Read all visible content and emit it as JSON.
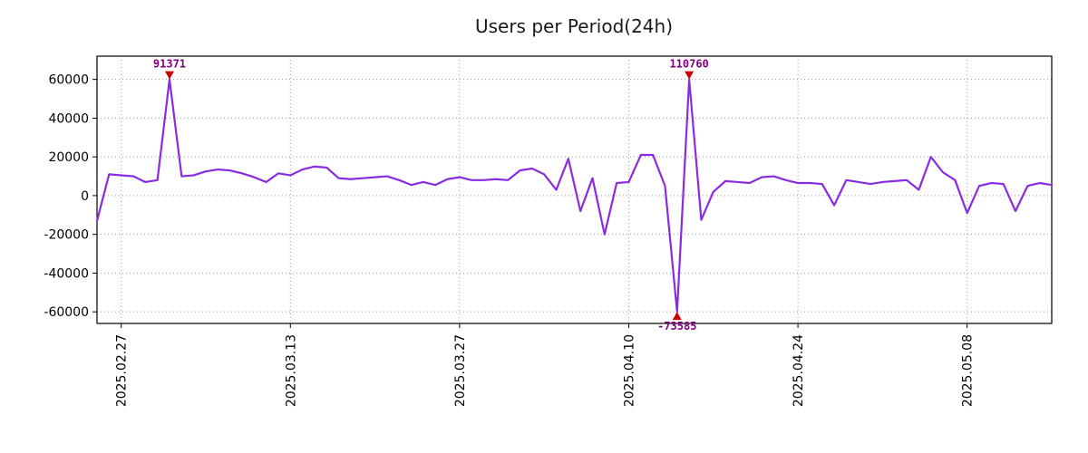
{
  "chart_data": {
    "type": "line",
    "title": "Users per Period(24h)",
    "grid": true,
    "legend": null,
    "ylim": [
      -66000,
      72000
    ],
    "clip": [
      -60000,
      60000
    ],
    "yticks": [
      60000,
      40000,
      20000,
      0,
      -20000,
      -40000,
      -60000
    ],
    "xtick_labels": [
      "2025.02.27",
      "2025.03.13",
      "2025.03.27",
      "2025.04.10",
      "2025.04.24",
      "2025.05.08"
    ],
    "x": [
      "2025-02-25",
      "2025-02-26",
      "2025-02-27",
      "2025-02-28",
      "2025-03-01",
      "2025-03-02",
      "2025-03-03",
      "2025-03-04",
      "2025-03-05",
      "2025-03-06",
      "2025-03-07",
      "2025-03-08",
      "2025-03-09",
      "2025-03-10",
      "2025-03-11",
      "2025-03-12",
      "2025-03-13",
      "2025-03-14",
      "2025-03-15",
      "2025-03-16",
      "2025-03-17",
      "2025-03-18",
      "2025-03-19",
      "2025-03-20",
      "2025-03-21",
      "2025-03-22",
      "2025-03-23",
      "2025-03-24",
      "2025-03-25",
      "2025-03-26",
      "2025-03-27",
      "2025-03-28",
      "2025-03-29",
      "2025-03-30",
      "2025-03-31",
      "2025-04-01",
      "2025-04-02",
      "2025-04-03",
      "2025-04-04",
      "2025-04-05",
      "2025-04-06",
      "2025-04-07",
      "2025-04-08",
      "2025-04-09",
      "2025-04-10",
      "2025-04-11",
      "2025-04-12",
      "2025-04-13",
      "2025-04-14",
      "2025-04-15",
      "2025-04-16",
      "2025-04-17",
      "2025-04-18",
      "2025-04-19",
      "2025-04-20",
      "2025-04-21",
      "2025-04-22",
      "2025-04-23",
      "2025-04-24",
      "2025-04-25",
      "2025-04-26",
      "2025-04-27",
      "2025-04-28",
      "2025-04-29",
      "2025-04-30",
      "2025-05-01",
      "2025-05-02",
      "2025-05-03",
      "2025-05-04",
      "2025-05-05",
      "2025-05-06",
      "2025-05-07",
      "2025-05-08",
      "2025-05-09",
      "2025-05-10",
      "2025-05-11",
      "2025-05-12",
      "2025-05-13",
      "2025-05-14",
      "2025-05-15"
    ],
    "values": [
      -13000,
      11000,
      10500,
      10000,
      7000,
      8000,
      91371,
      10000,
      10500,
      12500,
      13500,
      13000,
      11500,
      9500,
      7000,
      11500,
      10500,
      13500,
      15000,
      14500,
      9000,
      8500,
      9000,
      9500,
      10000,
      8000,
      5500,
      7000,
      5500,
      8500,
      9500,
      8000,
      8000,
      8500,
      8000,
      13000,
      14000,
      11000,
      3000,
      19000,
      -8000,
      9000,
      -20000,
      6500,
      7000,
      21000,
      21000,
      5000,
      -73585,
      110760,
      -12500,
      2000,
      7500,
      7000,
      6500,
      9500,
      10000,
      8000,
      6500,
      6500,
      6000,
      -5000,
      8000,
      7000,
      6000,
      7000,
      7500,
      8000,
      3000,
      20000,
      12000,
      8000,
      -9000,
      5000,
      6500,
      6000,
      -8000,
      5000,
      6500,
      5500
    ],
    "annotations": [
      {
        "date": "2025-03-03",
        "value": 91371,
        "label": "91371",
        "side": "max"
      },
      {
        "date": "2025-04-14",
        "value": -73585,
        "label": "-73585",
        "side": "min"
      },
      {
        "date": "2025-04-15",
        "value": 110760,
        "label": "110760",
        "side": "max"
      }
    ],
    "colors": {
      "line": "#8a2be2",
      "grid": "#999999",
      "frame": "#000000",
      "tick_label": "#000000",
      "title": "#1a1a1a",
      "annotation_text": "#800080",
      "marker": "#cc0000",
      "background": "#ffffff"
    }
  }
}
